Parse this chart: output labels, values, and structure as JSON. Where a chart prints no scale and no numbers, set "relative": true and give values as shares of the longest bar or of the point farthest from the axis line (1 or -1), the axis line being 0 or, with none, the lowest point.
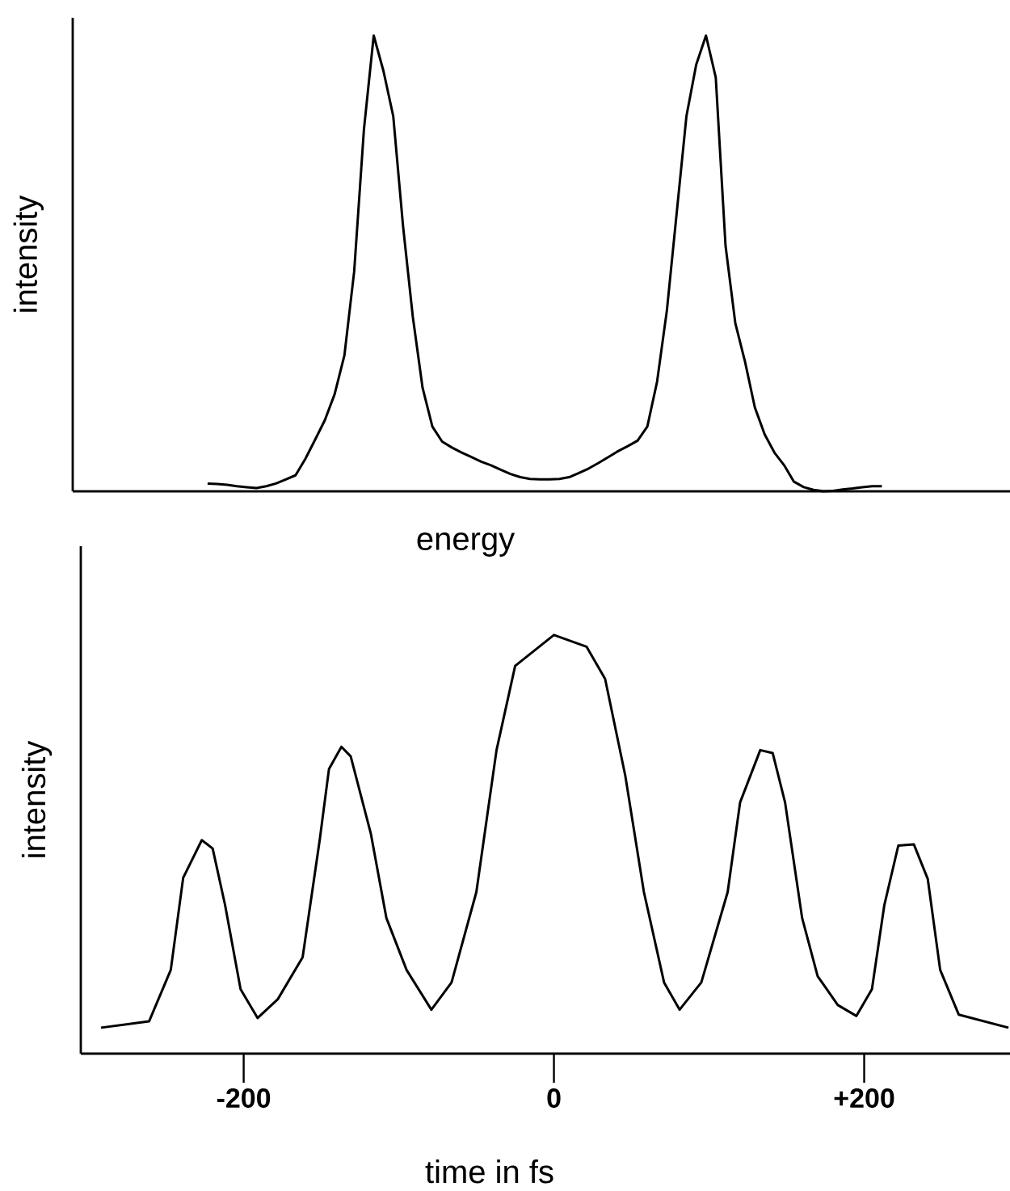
{
  "chart_data": [
    {
      "type": "line",
      "relative": true,
      "xlabel": "energy",
      "ylabel": "intensity",
      "color": "#000000",
      "categories": [
        null,
        null,
        null,
        null,
        null,
        null,
        null,
        null,
        null,
        null,
        null,
        null,
        null,
        null,
        null,
        null,
        null,
        null,
        null,
        null,
        null,
        null,
        null,
        null,
        null,
        null,
        null,
        null,
        null,
        null,
        null,
        null,
        null,
        null,
        null,
        null,
        null,
        null,
        null,
        null,
        null,
        null,
        null,
        null,
        null,
        null,
        null,
        null,
        null,
        null,
        null,
        null,
        null,
        null,
        null,
        null,
        null,
        null,
        null,
        null,
        null,
        null,
        null,
        null,
        null,
        null,
        null,
        null,
        null,
        null
      ],
      "values": [
        0.017,
        0.016,
        0.014,
        0.011,
        0.009,
        0.007,
        0.011,
        0.017,
        0.026,
        0.035,
        0.071,
        0.113,
        0.156,
        0.213,
        0.298,
        0.482,
        0.794,
        1.0,
        0.922,
        0.823,
        0.582,
        0.383,
        0.227,
        0.142,
        0.109,
        0.096,
        0.085,
        0.075,
        0.065,
        0.057,
        0.047,
        0.038,
        0.031,
        0.027,
        0.026,
        0.026,
        0.027,
        0.031,
        0.04,
        0.05,
        0.062,
        0.075,
        0.088,
        0.099,
        0.111,
        0.142,
        0.241,
        0.397,
        0.61,
        0.823,
        0.936,
        1.0,
        0.908,
        0.539,
        0.369,
        0.284,
        0.184,
        0.125,
        0.085,
        0.057,
        0.021,
        0.009,
        0.003,
        0.0,
        0.001,
        0.004,
        0.006,
        0.009,
        0.011,
        0.011
      ]
    },
    {
      "type": "line",
      "relative": true,
      "xlabel": "time in fs",
      "ylabel": "intensity",
      "color": "#000000",
      "tick_labels": "x",
      "xlim": [
        -305,
        294
      ],
      "xticks": [
        {
          "value": -200,
          "label": "-200"
        },
        0,
        {
          "value": 200,
          "label": "+200"
        }
      ],
      "x": [
        -292,
        -261,
        -247,
        -239,
        -227,
        -220,
        -212,
        -202,
        -191,
        -178,
        -162,
        -151,
        -145,
        -137,
        -131,
        -118,
        -108,
        -95,
        -79,
        -66,
        -50,
        -37,
        -25,
        0,
        21,
        33,
        46,
        58,
        71,
        81,
        95,
        112,
        120,
        133,
        141,
        149,
        160,
        170,
        183,
        195,
        205,
        213,
        222,
        232,
        241,
        249,
        261,
        293
      ],
      "values": [
        0.062,
        0.077,
        0.2,
        0.42,
        0.51,
        0.49,
        0.355,
        0.154,
        0.085,
        0.13,
        0.23,
        0.51,
        0.68,
        0.733,
        0.71,
        0.525,
        0.324,
        0.2,
        0.105,
        0.17,
        0.386,
        0.725,
        0.926,
        1.0,
        0.972,
        0.895,
        0.664,
        0.386,
        0.17,
        0.105,
        0.17,
        0.386,
        0.6,
        0.725,
        0.718,
        0.6,
        0.324,
        0.185,
        0.116,
        0.09,
        0.154,
        0.355,
        0.497,
        0.5,
        0.417,
        0.2,
        0.093,
        0.062
      ]
    }
  ]
}
